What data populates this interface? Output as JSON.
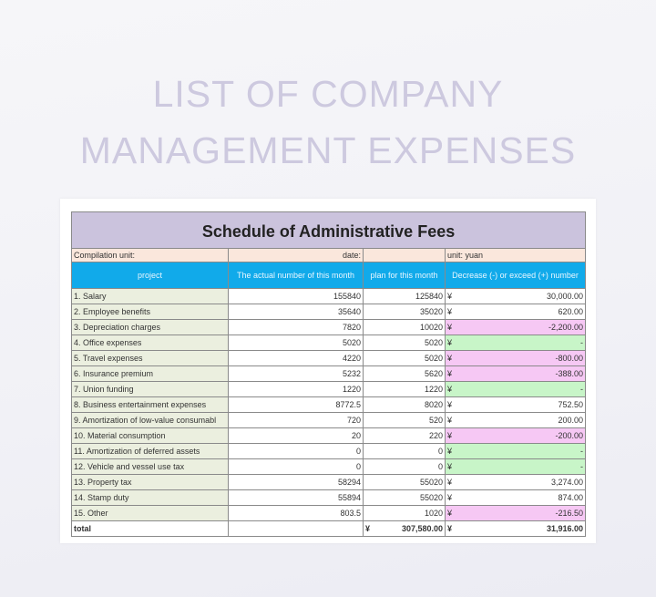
{
  "heading": [
    "LIST OF COMPANY",
    "MANAGEMENT EXPENSES"
  ],
  "table": {
    "title": "Schedule of Administrative Fees",
    "compilation_label": "Compilation unit:",
    "date_label": "date:",
    "unit_label": "unit: yuan",
    "headers": [
      "project",
      "The actual number of this month",
      "plan for this month",
      "Decrease (-) or exceed (+) number"
    ],
    "currency": "¥",
    "rows": [
      {
        "project": "1. Salary",
        "actual": "155840",
        "plan": "125840",
        "diff": "30,000.00",
        "status": "pos"
      },
      {
        "project": "2. Employee benefits",
        "actual": "35640",
        "plan": "35020",
        "diff": "620.00",
        "status": "pos"
      },
      {
        "project": "3. Depreciation charges",
        "actual": "7820",
        "plan": "10020",
        "diff": "-2,200.00",
        "status": "neg"
      },
      {
        "project": "4. Office expenses",
        "actual": "5020",
        "plan": "5020",
        "diff": "-",
        "status": "zero"
      },
      {
        "project": "5. Travel expenses",
        "actual": "4220",
        "plan": "5020",
        "diff": "-800.00",
        "status": "neg"
      },
      {
        "project": "6. Insurance premium",
        "actual": "5232",
        "plan": "5620",
        "diff": "-388.00",
        "status": "neg"
      },
      {
        "project": "7. Union funding",
        "actual": "1220",
        "plan": "1220",
        "diff": "-",
        "status": "zero"
      },
      {
        "project": "8. Business entertainment expenses",
        "actual": "8772.5",
        "plan": "8020",
        "diff": "752.50",
        "status": "pos"
      },
      {
        "project": "9. Amortization of low-value consumabl",
        "actual": "720",
        "plan": "520",
        "diff": "200.00",
        "status": "pos"
      },
      {
        "project": "10. Material consumption",
        "actual": "20",
        "plan": "220",
        "diff": "-200.00",
        "status": "neg"
      },
      {
        "project": "11. Amortization of deferred assets",
        "actual": "0",
        "plan": "0",
        "diff": "-",
        "status": "zero"
      },
      {
        "project": "12. Vehicle and vessel use tax",
        "actual": "0",
        "plan": "0",
        "diff": "-",
        "status": "zero"
      },
      {
        "project": "13. Property tax",
        "actual": "58294",
        "plan": "55020",
        "diff": "3,274.00",
        "status": "pos"
      },
      {
        "project": "14. Stamp duty",
        "actual": "55894",
        "plan": "55020",
        "diff": "874.00",
        "status": "pos"
      },
      {
        "project": "15. Other",
        "actual": "803.5",
        "plan": "1020",
        "diff": "-216.50",
        "status": "neg"
      }
    ],
    "total": {
      "label": "total",
      "plan": "307,580.00",
      "diff": "31,916.00"
    }
  },
  "colors": {
    "title_bg": "#cbc3dd",
    "header_bg": "#11aaea",
    "negative_bg": "#f6c8f4",
    "zero_bg": "#c8f5c8",
    "project_bg": "#ebefdf"
  }
}
